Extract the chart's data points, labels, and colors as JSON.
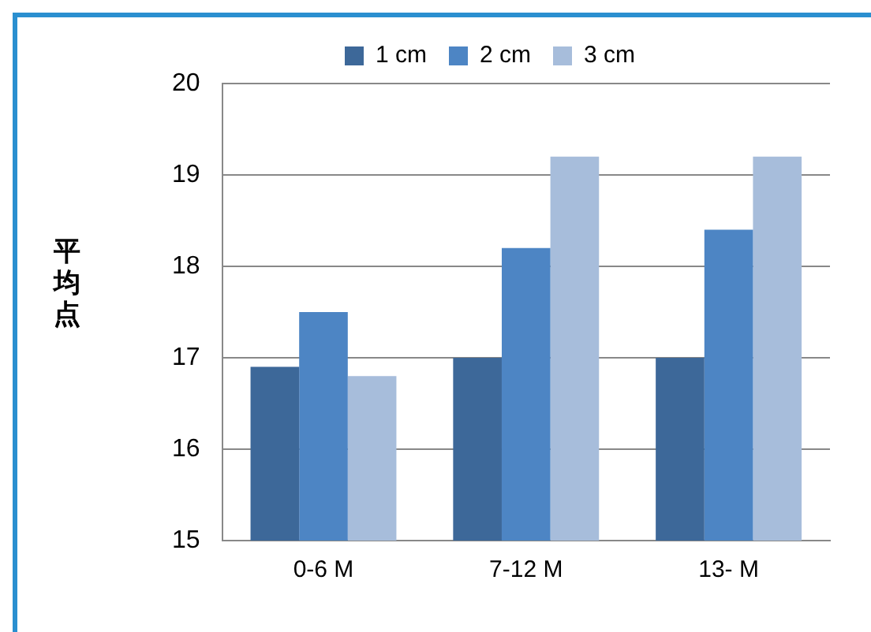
{
  "chart_data": {
    "type": "bar",
    "ylabel": "平均点",
    "categories": [
      "0-6 M",
      "7-12 M",
      "13- M"
    ],
    "series": [
      {
        "name": "1 cm",
        "color": "#3d6899",
        "values": [
          16.9,
          17.0,
          17.0
        ]
      },
      {
        "name": "2 cm",
        "color": "#4d85c4",
        "values": [
          17.5,
          18.2,
          18.4
        ]
      },
      {
        "name": "3 cm",
        "color": "#a7bddb",
        "values": [
          16.8,
          19.2,
          19.2
        ]
      }
    ],
    "ylim": [
      15,
      20
    ],
    "yticks": [
      15,
      16,
      17,
      18,
      19,
      20
    ],
    "grid": "y",
    "legend": "top"
  }
}
